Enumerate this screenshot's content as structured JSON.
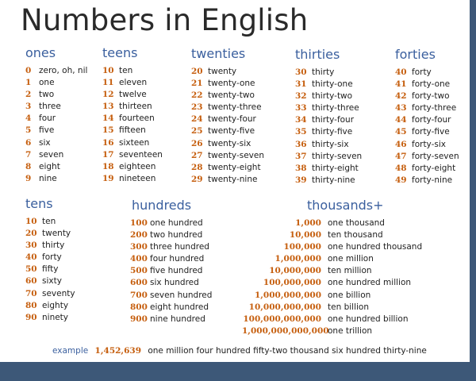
{
  "title": "Numbers in English",
  "sections": {
    "ones": {
      "heading": "ones",
      "rows": [
        {
          "num": "0",
          "word": "zero, oh, nil"
        },
        {
          "num": "1",
          "word": "one"
        },
        {
          "num": "2",
          "word": "two"
        },
        {
          "num": "3",
          "word": "three"
        },
        {
          "num": "4",
          "word": "four"
        },
        {
          "num": "5",
          "word": "five"
        },
        {
          "num": "6",
          "word": "six"
        },
        {
          "num": "7",
          "word": "seven"
        },
        {
          "num": "8",
          "word": "eight"
        },
        {
          "num": "9",
          "word": "nine"
        }
      ]
    },
    "teens": {
      "heading": "teens",
      "rows": [
        {
          "num": "10",
          "word": "ten"
        },
        {
          "num": "11",
          "word": "eleven"
        },
        {
          "num": "12",
          "word": "twelve"
        },
        {
          "num": "13",
          "word": "thirteen"
        },
        {
          "num": "14",
          "word": "fourteen"
        },
        {
          "num": "15",
          "word": "fifteen"
        },
        {
          "num": "16",
          "word": "sixteen"
        },
        {
          "num": "17",
          "word": "seventeen"
        },
        {
          "num": "18",
          "word": "eighteen"
        },
        {
          "num": "19",
          "word": "nineteen"
        }
      ]
    },
    "twenties": {
      "heading": "twenties",
      "rows": [
        {
          "num": "20",
          "word": "twenty"
        },
        {
          "num": "21",
          "word": "twenty-one"
        },
        {
          "num": "22",
          "word": "twenty-two"
        },
        {
          "num": "23",
          "word": "twenty-three"
        },
        {
          "num": "24",
          "word": "twenty-four"
        },
        {
          "num": "25",
          "word": "twenty-five"
        },
        {
          "num": "26",
          "word": "twenty-six"
        },
        {
          "num": "27",
          "word": "twenty-seven"
        },
        {
          "num": "28",
          "word": "twenty-eight"
        },
        {
          "num": "29",
          "word": "twenty-nine"
        }
      ]
    },
    "thirties": {
      "heading": "thirties",
      "rows": [
        {
          "num": "30",
          "word": "thirty"
        },
        {
          "num": "31",
          "word": "thirty-one"
        },
        {
          "num": "32",
          "word": "thirty-two"
        },
        {
          "num": "33",
          "word": "thirty-three"
        },
        {
          "num": "34",
          "word": "thirty-four"
        },
        {
          "num": "35",
          "word": "thirty-five"
        },
        {
          "num": "36",
          "word": "thirty-six"
        },
        {
          "num": "37",
          "word": "thirty-seven"
        },
        {
          "num": "38",
          "word": "thirty-eight"
        },
        {
          "num": "39",
          "word": "thirty-nine"
        }
      ]
    },
    "forties": {
      "heading": "forties",
      "rows": [
        {
          "num": "40",
          "word": "forty"
        },
        {
          "num": "41",
          "word": "forty-one"
        },
        {
          "num": "42",
          "word": "forty-two"
        },
        {
          "num": "43",
          "word": "forty-three"
        },
        {
          "num": "44",
          "word": "forty-four"
        },
        {
          "num": "45",
          "word": "forty-five"
        },
        {
          "num": "46",
          "word": "forty-six"
        },
        {
          "num": "47",
          "word": "forty-seven"
        },
        {
          "num": "48",
          "word": "forty-eight"
        },
        {
          "num": "49",
          "word": "forty-nine"
        }
      ]
    },
    "tens": {
      "heading": "tens",
      "rows": [
        {
          "num": "10",
          "word": "ten"
        },
        {
          "num": "20",
          "word": "twenty"
        },
        {
          "num": "30",
          "word": "thirty"
        },
        {
          "num": "40",
          "word": "forty"
        },
        {
          "num": "50",
          "word": "fifty"
        },
        {
          "num": "60",
          "word": "sixty"
        },
        {
          "num": "70",
          "word": "seventy"
        },
        {
          "num": "80",
          "word": "eighty"
        },
        {
          "num": "90",
          "word": "ninety"
        }
      ]
    },
    "hundreds": {
      "heading": "hundreds",
      "rows": [
        {
          "num": "100",
          "word": "one hundred"
        },
        {
          "num": "200",
          "word": "two hundred"
        },
        {
          "num": "300",
          "word": "three hundred"
        },
        {
          "num": "400",
          "word": "four hundred"
        },
        {
          "num": "500",
          "word": "five hundred"
        },
        {
          "num": "600",
          "word": "six hundred"
        },
        {
          "num": "700",
          "word": "seven hundred"
        },
        {
          "num": "800",
          "word": "eight hundred"
        },
        {
          "num": "900",
          "word": "nine hundred"
        }
      ]
    },
    "thousands": {
      "heading": "thousands+",
      "rows": [
        {
          "num": "1,000",
          "word": "one thousand"
        },
        {
          "num": "10,000",
          "word": "ten thousand"
        },
        {
          "num": "100,000",
          "word": "one hundred thousand"
        },
        {
          "num": "1,000,000",
          "word": "one million"
        },
        {
          "num": "10,000,000",
          "word": "ten million"
        },
        {
          "num": "100,000,000",
          "word": "one hundred million"
        },
        {
          "num": "1,000,000,000",
          "word": "one billion"
        },
        {
          "num": "10,000,000,000",
          "word": "ten billion"
        },
        {
          "num": "100,000,000,000",
          "word": "one hundred billion"
        },
        {
          "num": "1,000,000,000,000",
          "word": "one trillion"
        }
      ]
    }
  },
  "example": {
    "label": "example",
    "number": "1,452,639",
    "words": "one million four hundred fifty-two thousand six hundred thirty-nine"
  },
  "colors": {
    "heading": "#3a5f9e",
    "number": "#c65f0f",
    "frame": "#3d5878"
  }
}
